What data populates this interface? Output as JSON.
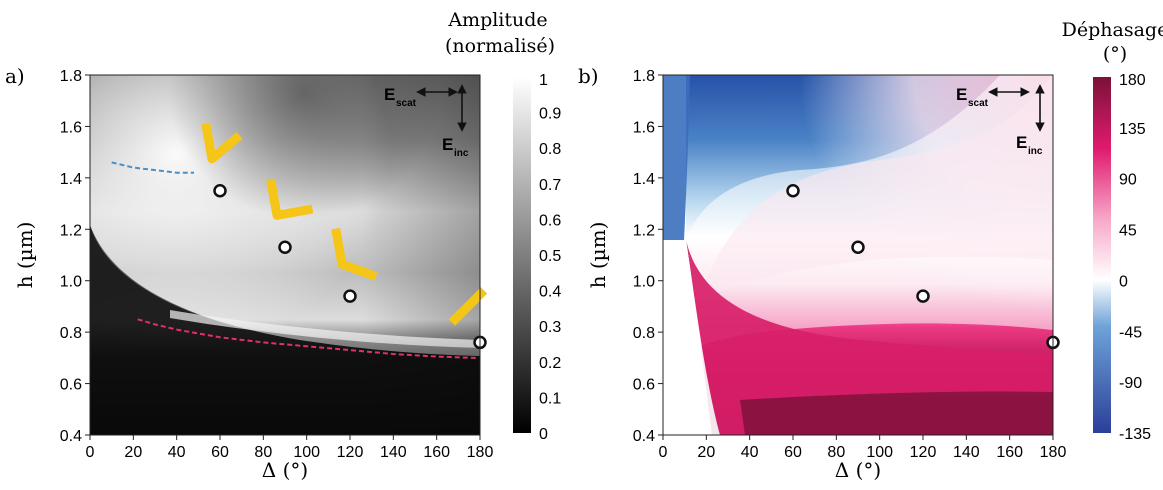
{
  "chart_data": [
    {
      "type": "heatmap",
      "panel_label": "a)",
      "xlabel": "Δ (°)",
      "ylabel": "h (µm)",
      "xlim": [
        0,
        180
      ],
      "ylim": [
        0.4,
        1.8
      ],
      "xticks": [
        0,
        20,
        40,
        60,
        80,
        100,
        120,
        140,
        160,
        180
      ],
      "yticks": [
        "0.4",
        "0.6",
        "0.8",
        "1.0",
        "1.2",
        "1.4",
        "1.6",
        "1.8"
      ],
      "colorbar": {
        "title_line1": "Amplitude",
        "title_line2": "(normalisé)",
        "colormap": "gray",
        "ticks": [
          "0",
          "0.1",
          "0.2",
          "0.3",
          "0.4",
          "0.5",
          "0.6",
          "0.7",
          "0.8",
          "0.9",
          "1"
        ],
        "range": [
          0,
          1
        ]
      },
      "markers": [
        {
          "x": 60,
          "y": 1.35
        },
        {
          "x": 90,
          "y": 1.13
        },
        {
          "x": 120,
          "y": 0.94
        },
        {
          "x": 180,
          "y": 0.76
        }
      ],
      "antenna_angles": [
        60,
        90,
        120,
        180
      ],
      "antenna_color": "#f5c518",
      "dashed_curves": [
        {
          "color": "#4a90c8",
          "points": [
            [
              10,
              1.46
            ],
            [
              20,
              1.44
            ],
            [
              30,
              1.43
            ],
            [
              40,
              1.42
            ],
            [
              48,
              1.42
            ]
          ]
        },
        {
          "color": "#e0306a",
          "points": [
            [
              22,
              0.85
            ],
            [
              30,
              0.83
            ],
            [
              40,
              0.81
            ],
            [
              60,
              0.78
            ],
            [
              80,
              0.76
            ],
            [
              100,
              0.745
            ],
            [
              120,
              0.73
            ],
            [
              140,
              0.715
            ],
            [
              160,
              0.705
            ],
            [
              178,
              0.7
            ]
          ]
        }
      ],
      "polarization": {
        "scattered": "E",
        "scattered_sub": "scat",
        "incident": "E",
        "incident_sub": "inc"
      }
    },
    {
      "type": "heatmap",
      "panel_label": "b)",
      "xlabel": "Δ (°)",
      "ylabel": "h (µm)",
      "xlim": [
        0,
        180
      ],
      "ylim": [
        0.4,
        1.8
      ],
      "xticks": [
        0,
        20,
        40,
        60,
        80,
        100,
        120,
        140,
        160,
        180
      ],
      "yticks": [
        "0.4",
        "0.6",
        "0.8",
        "1.0",
        "1.2",
        "1.4",
        "1.6",
        "1.8"
      ],
      "colorbar": {
        "title_line1": "Déphasage",
        "title_line2": "(°)",
        "colormap": "blue-white-magenta",
        "ticks": [
          "-135",
          "-90",
          "-45",
          "0",
          "45",
          "90",
          "135",
          "180"
        ],
        "range": [
          -135,
          180
        ]
      },
      "markers": [
        {
          "x": 60,
          "y": 1.35
        },
        {
          "x": 90,
          "y": 1.13
        },
        {
          "x": 120,
          "y": 0.94
        },
        {
          "x": 180,
          "y": 0.76
        }
      ],
      "polarization": {
        "scattered": "E",
        "scattered_sub": "scat",
        "incident": "E",
        "incident_sub": "inc"
      }
    }
  ]
}
